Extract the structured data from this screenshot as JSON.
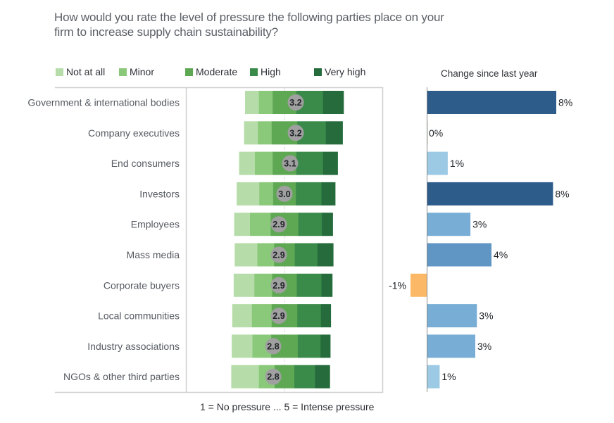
{
  "chart_data": [
    {
      "type": "bar",
      "subtype": "diverging-stacked-horizontal",
      "title": "How would you rate the level of pressure the following parties place on your firm to increase supply chain sustainability?",
      "footnote": "1 = No pressure ... 5 = Intense pressure",
      "legend": [
        {
          "label": "Not at all",
          "color": "#b6dda9"
        },
        {
          "label": "Minor",
          "color": "#8bc97a"
        },
        {
          "label": "Moderate",
          "color": "#5ea854"
        },
        {
          "label": "High",
          "color": "#3a8a4a"
        },
        {
          "label": "Very high",
          "color": "#256b3c"
        }
      ],
      "legend_position": "top",
      "categories": [
        "Government & international bodies",
        "Company executives",
        "End consumers",
        "Investors",
        "Employees",
        "Mass media",
        "Corporate buyers",
        "Local communities",
        "Industry associations",
        "NGOs & other third parties"
      ],
      "series": [
        {
          "name": "Not at all",
          "values": [
            14,
            14,
            16,
            23,
            16,
            23,
            21,
            20,
            21,
            28
          ]
        },
        {
          "name": "Minor",
          "values": [
            14,
            14,
            18,
            14,
            21,
            17,
            18,
            20,
            19,
            16
          ]
        },
        {
          "name": "Moderate",
          "values": [
            24,
            26,
            24,
            23,
            28,
            21,
            25,
            26,
            27,
            20
          ]
        },
        {
          "name": "High",
          "values": [
            27,
            29,
            27,
            26,
            24,
            23,
            25,
            24,
            23,
            21
          ]
        },
        {
          "name": "Very high",
          "values": [
            21,
            17,
            15,
            14,
            11,
            16,
            11,
            10,
            10,
            15
          ]
        }
      ],
      "value_unit": "percent of respondents (estimated)",
      "mean_scores": [
        3.2,
        3.2,
        3.1,
        3.0,
        2.9,
        2.9,
        2.9,
        2.9,
        2.8,
        2.8
      ],
      "mean_marker_color": "#a0a0a0",
      "grid": false
    },
    {
      "type": "bar",
      "subtype": "horizontal",
      "title": "Change since last year",
      "categories": [
        "Government & international bodies",
        "Company executives",
        "End consumers",
        "Investors",
        "Employees",
        "Mass media",
        "Corporate buyers",
        "Local communities",
        "Industry associations",
        "NGOs & other third parties"
      ],
      "values": [
        8.0,
        0.0,
        1.3,
        7.8,
        2.7,
        4.0,
        -1.0,
        3.1,
        3.0,
        0.8
      ],
      "labels": [
        "8%",
        "0%",
        "1%",
        "8%",
        "3%",
        "4%",
        "-1%",
        "3%",
        "3%",
        "1%"
      ],
      "colors": [
        "#2d5c8a",
        "#c8dcc0",
        "#9ccae4",
        "#2d5c8a",
        "#78aed6",
        "#6096c4",
        "#fbb968",
        "#78aed6",
        "#78aed6",
        "#9ccae4"
      ],
      "xlim": [
        -1.5,
        11
      ],
      "grid": false
    }
  ]
}
